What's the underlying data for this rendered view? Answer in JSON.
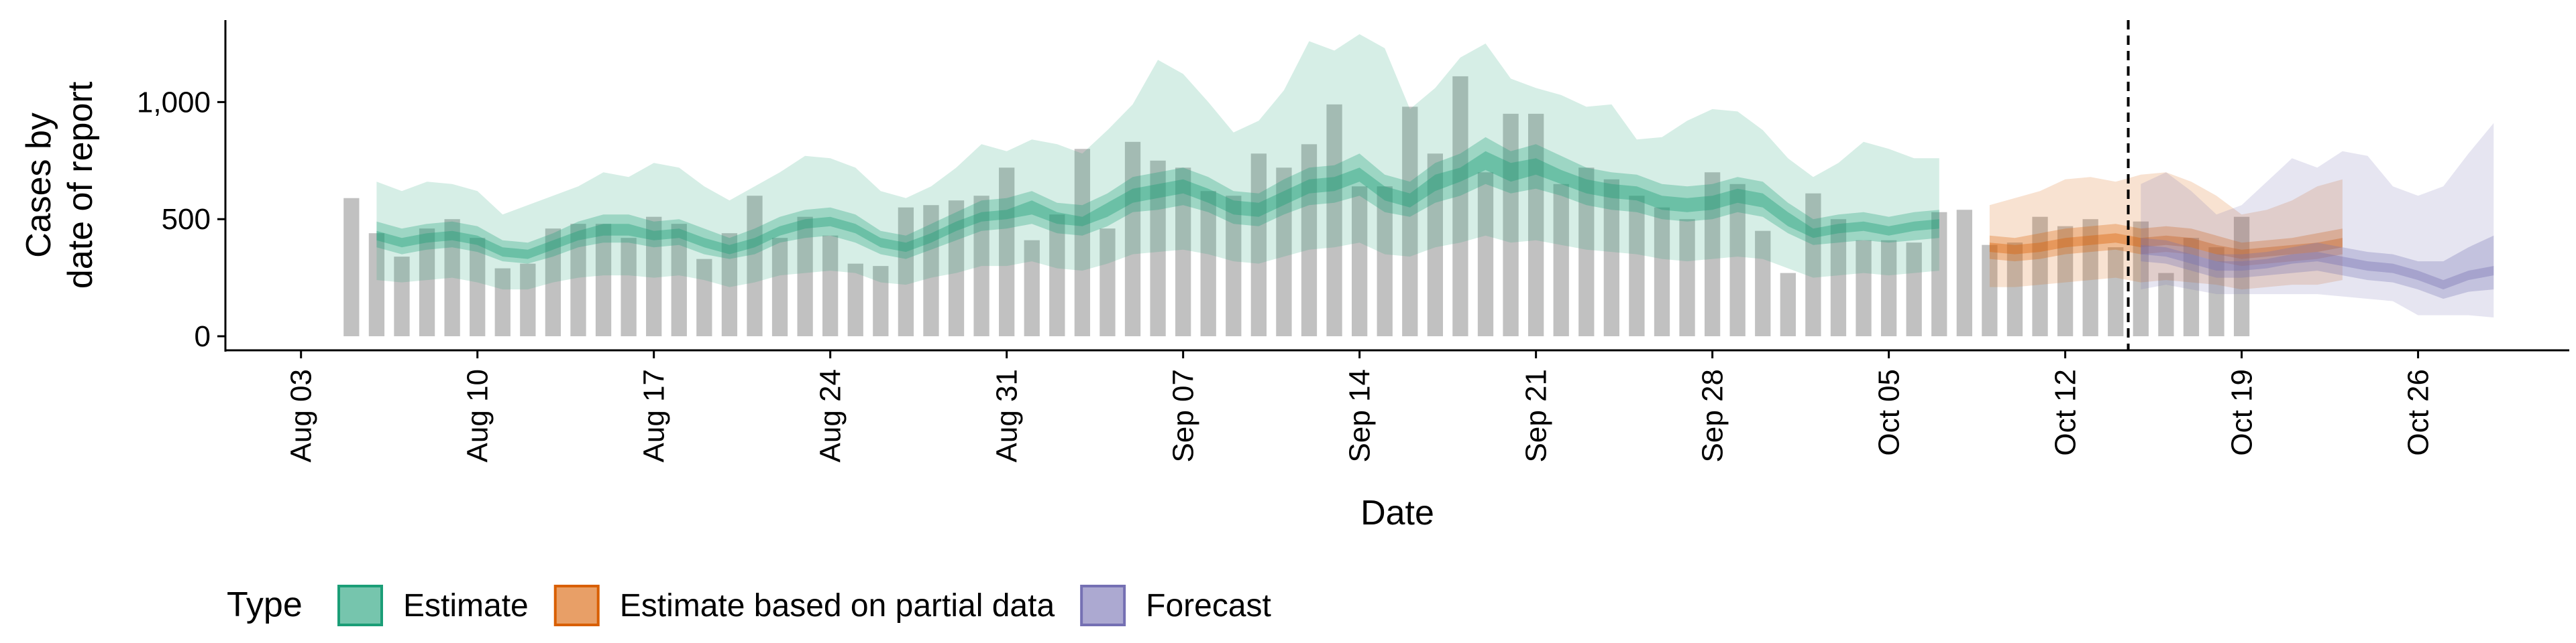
{
  "chart_data": {
    "type": "area",
    "xlabel": "Date",
    "ylabel": [
      "Cases by",
      "date of report"
    ],
    "ylim": [
      -60,
      1350
    ],
    "yticks": [
      0,
      500,
      1000
    ],
    "ytick_labels": [
      "0",
      "500",
      "1,000"
    ],
    "xticks": [
      "2020-08-03",
      "2020-08-10",
      "2020-08-17",
      "2020-08-24",
      "2020-08-31",
      "2020-09-07",
      "2020-09-14",
      "2020-09-21",
      "2020-09-28",
      "2020-10-05",
      "2020-10-12",
      "2020-10-19",
      "2020-10-26"
    ],
    "xtick_labels": [
      "Aug 03",
      "Aug 10",
      "Aug 17",
      "Aug 24",
      "Aug 31",
      "Sep 07",
      "Sep 14",
      "Sep 21",
      "Sep 28",
      "Oct 05",
      "Oct 12",
      "Oct 19",
      "Oct 26"
    ],
    "x_range": [
      "2020-07-31",
      "2020-11-01"
    ],
    "forecast_start": "2020-10-14",
    "bars": {
      "start": "2020-08-05",
      "color": "#bebebe",
      "values": [
        590,
        440,
        340,
        460,
        500,
        420,
        290,
        310,
        460,
        480,
        480,
        420,
        510,
        480,
        330,
        440,
        600,
        420,
        510,
        430,
        310,
        300,
        550,
        560,
        580,
        600,
        720,
        410,
        520,
        800,
        460,
        830,
        750,
        720,
        620,
        600,
        780,
        720,
        820,
        990,
        640,
        640,
        980,
        780,
        1110,
        700,
        950,
        950,
        650,
        720,
        670,
        600,
        550,
        500,
        700,
        650,
        450,
        270,
        610,
        500,
        410,
        410,
        400,
        530,
        540,
        390,
        400,
        510,
        470,
        500,
        380,
        490,
        270,
        420,
        380,
        510
      ]
    },
    "series": [
      {
        "name": "Estimate",
        "color": "#1b9e77",
        "start": "2020-08-06",
        "median": [
          430,
          400,
          420,
          430,
          410,
          360,
          350,
          390,
          430,
          450,
          450,
          430,
          440,
          400,
          370,
          400,
          450,
          480,
          490,
          460,
          400,
          380,
          420,
          470,
          510,
          520,
          550,
          500,
          490,
          540,
          600,
          620,
          640,
          600,
          550,
          540,
          590,
          640,
          650,
          690,
          610,
          580,
          650,
          690,
          750,
          700,
          720,
          680,
          640,
          620,
          610,
          570,
          560,
          570,
          600,
          580,
          500,
          440,
          460,
          470,
          450,
          470,
          480
        ],
        "lower90": [
          240,
          230,
          240,
          250,
          230,
          200,
          200,
          230,
          250,
          260,
          260,
          250,
          260,
          240,
          210,
          230,
          260,
          270,
          280,
          270,
          230,
          220,
          250,
          270,
          300,
          300,
          320,
          290,
          280,
          310,
          350,
          360,
          370,
          350,
          320,
          310,
          340,
          370,
          380,
          400,
          350,
          340,
          380,
          400,
          430,
          400,
          410,
          390,
          370,
          360,
          350,
          330,
          320,
          330,
          340,
          330,
          290,
          250,
          260,
          270,
          260,
          270,
          280
        ],
        "lower50": [
          380,
          350,
          370,
          380,
          360,
          320,
          310,
          340,
          380,
          400,
          400,
          380,
          390,
          350,
          330,
          350,
          400,
          420,
          430,
          400,
          350,
          330,
          370,
          410,
          450,
          460,
          480,
          440,
          430,
          470,
          530,
          540,
          560,
          530,
          480,
          470,
          520,
          560,
          570,
          600,
          530,
          510,
          570,
          600,
          650,
          610,
          630,
          600,
          560,
          540,
          530,
          500,
          490,
          500,
          530,
          510,
          440,
          390,
          400,
          410,
          400,
          410,
          420
        ],
        "lower20": [
          410,
          380,
          400,
          410,
          390,
          340,
          330,
          370,
          410,
          430,
          430,
          410,
          420,
          380,
          350,
          380,
          430,
          460,
          470,
          440,
          380,
          360,
          400,
          450,
          490,
          500,
          520,
          480,
          470,
          510,
          570,
          590,
          610,
          570,
          520,
          510,
          560,
          610,
          620,
          660,
          580,
          550,
          620,
          660,
          710,
          660,
          690,
          650,
          610,
          590,
          580,
          540,
          530,
          540,
          570,
          550,
          470,
          420,
          440,
          450,
          430,
          450,
          460
        ],
        "upper20": [
          450,
          420,
          440,
          450,
          430,
          380,
          370,
          410,
          450,
          480,
          480,
          450,
          460,
          420,
          390,
          420,
          470,
          500,
          510,
          480,
          420,
          400,
          440,
          490,
          530,
          540,
          580,
          530,
          510,
          570,
          630,
          650,
          670,
          630,
          580,
          570,
          620,
          670,
          680,
          720,
          640,
          610,
          690,
          720,
          790,
          740,
          760,
          710,
          670,
          650,
          640,
          600,
          590,
          600,
          630,
          610,
          530,
          460,
          480,
          490,
          470,
          490,
          500
        ],
        "upper50": [
          490,
          460,
          480,
          490,
          470,
          410,
          400,
          440,
          490,
          520,
          520,
          490,
          500,
          460,
          420,
          460,
          510,
          540,
          550,
          520,
          450,
          430,
          480,
          530,
          580,
          590,
          620,
          570,
          560,
          610,
          680,
          700,
          720,
          680,
          620,
          610,
          670,
          720,
          730,
          780,
          690,
          660,
          740,
          780,
          850,
          790,
          820,
          770,
          720,
          700,
          690,
          650,
          640,
          650,
          680,
          660,
          570,
          500,
          520,
          530,
          510,
          530,
          540
        ],
        "upper90": [
          660,
          620,
          660,
          650,
          620,
          520,
          560,
          600,
          640,
          700,
          680,
          740,
          720,
          640,
          580,
          640,
          700,
          770,
          760,
          720,
          620,
          590,
          640,
          720,
          820,
          790,
          840,
          820,
          780,
          880,
          990,
          1180,
          1120,
          1000,
          870,
          920,
          1050,
          1260,
          1220,
          1290,
          1230,
          970,
          1060,
          1190,
          1250,
          1100,
          1060,
          1030,
          980,
          990,
          840,
          850,
          920,
          970,
          960,
          880,
          760,
          680,
          740,
          830,
          800,
          760,
          760
        ]
      },
      {
        "name": "Estimate based on partial data",
        "color": "#d95f02",
        "start": "2020-10-09",
        "median": [
          380,
          370,
          380,
          400,
          410,
          420,
          400,
          410,
          400,
          370,
          350,
          360,
          370,
          380,
          400
        ],
        "lower90": [
          210,
          210,
          220,
          230,
          240,
          250,
          230,
          240,
          230,
          220,
          200,
          210,
          220,
          220,
          240
        ],
        "lower50": [
          330,
          320,
          330,
          350,
          360,
          370,
          350,
          360,
          350,
          320,
          300,
          310,
          320,
          330,
          350
        ],
        "lower20": [
          360,
          350,
          360,
          380,
          390,
          400,
          380,
          390,
          380,
          350,
          330,
          340,
          350,
          360,
          380
        ],
        "upper20": [
          400,
          390,
          400,
          420,
          430,
          440,
          420,
          430,
          420,
          390,
          370,
          380,
          390,
          400,
          420
        ],
        "upper50": [
          430,
          420,
          440,
          460,
          470,
          480,
          460,
          470,
          460,
          430,
          400,
          410,
          420,
          440,
          460
        ],
        "upper90": [
          560,
          590,
          620,
          670,
          680,
          660,
          690,
          700,
          660,
          600,
          520,
          540,
          580,
          640,
          670
        ]
      },
      {
        "name": "Forecast",
        "color": "#7570b3",
        "start": "2020-10-15",
        "median": [
          370,
          360,
          330,
          300,
          300,
          310,
          330,
          340,
          320,
          300,
          290,
          260,
          220,
          260,
          280
        ],
        "lower90": [
          200,
          220,
          200,
          180,
          180,
          180,
          180,
          180,
          170,
          160,
          150,
          90,
          90,
          90,
          80
        ],
        "lower50": [
          320,
          310,
          280,
          250,
          250,
          260,
          270,
          280,
          260,
          240,
          230,
          200,
          160,
          190,
          200
        ],
        "lower20": [
          350,
          340,
          310,
          280,
          280,
          290,
          310,
          320,
          300,
          280,
          270,
          240,
          200,
          240,
          260
        ],
        "upper20": [
          390,
          380,
          350,
          320,
          320,
          330,
          350,
          360,
          340,
          320,
          310,
          280,
          240,
          280,
          300
        ],
        "upper50": [
          420,
          410,
          380,
          350,
          350,
          360,
          380,
          400,
          380,
          360,
          350,
          320,
          320,
          380,
          430
        ],
        "upper90": [
          650,
          700,
          620,
          520,
          560,
          660,
          760,
          720,
          790,
          770,
          640,
          600,
          640,
          780,
          910
        ]
      }
    ],
    "legend": {
      "position": "bottom",
      "title": "Type",
      "entries": [
        "Estimate",
        "Estimate based on partial data",
        "Forecast"
      ]
    },
    "grid": false
  }
}
